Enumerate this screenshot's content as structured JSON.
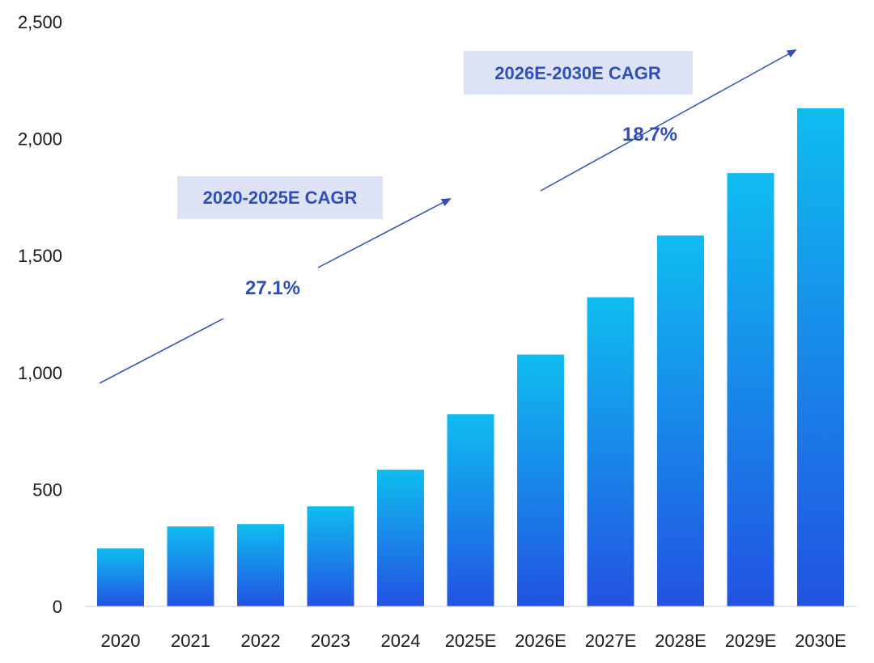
{
  "chart_data": {
    "type": "bar",
    "title": "",
    "xlabel": "",
    "ylabel": "",
    "ylim": [
      0,
      2500
    ],
    "yticks": [
      0,
      500,
      1000,
      1500,
      2000,
      2500
    ],
    "ytick_labels": [
      "0",
      "500",
      "1,000",
      "1,500",
      "2,000",
      "2,500"
    ],
    "categories": [
      "2020",
      "2021",
      "2022",
      "2023",
      "2024",
      "2025E",
      "2026E",
      "2027E",
      "2028E",
      "2029E",
      "2030E"
    ],
    "values": [
      248,
      342,
      352,
      428,
      585,
      822,
      1077,
      1322,
      1586,
      1853,
      2130
    ],
    "grid": false,
    "colors": {
      "bar_top": "#0fbdf0",
      "bar_bottom": "#2252e2",
      "annotation": "#2f4fb6",
      "box_fill": "#dde3f5",
      "axis": "#cccccc"
    },
    "annotations": [
      {
        "label": "2020-2025E CAGR",
        "value": "27.1%",
        "span": [
          "2020",
          "2025E"
        ]
      },
      {
        "label": "2026E-2030E CAGR",
        "value": "18.7%",
        "span": [
          "2026E",
          "2030E"
        ]
      }
    ]
  }
}
